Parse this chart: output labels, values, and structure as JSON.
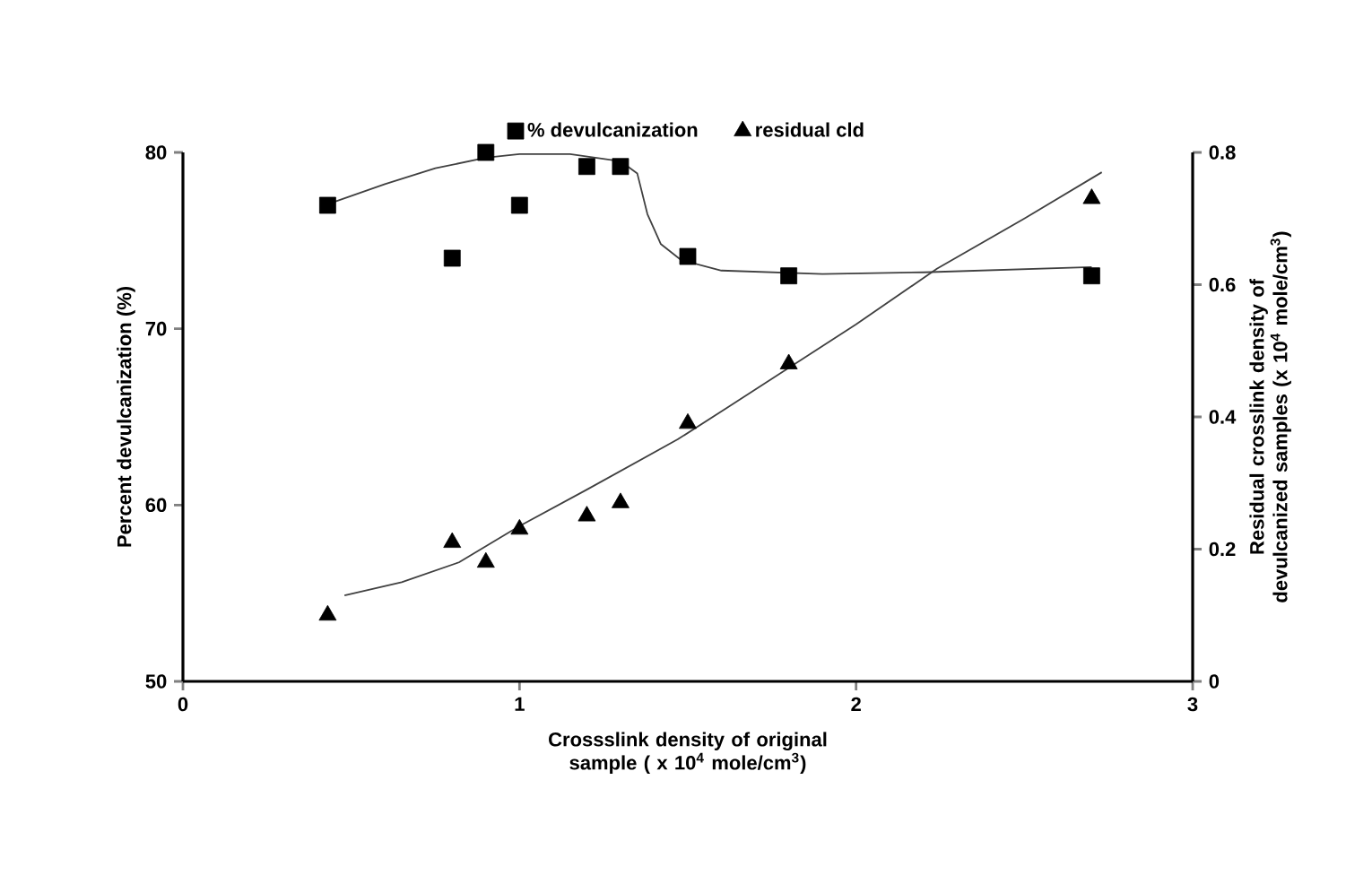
{
  "chart_data": {
    "type": "scatter",
    "xlabel": "Crossslink density of original sample ( x 10$^{4}$ mole/cm$^{3}$)",
    "ylabel": "Percent devulcanization (%)",
    "y2label": "Residual crosslink density of devulcanized samples (x 10$^{4}$ mole/cm$^{3}$)",
    "xlim": [
      0,
      3
    ],
    "xticks": [
      0,
      1,
      2,
      3
    ],
    "ylim": [
      50,
      80
    ],
    "yticks": [
      50,
      60,
      70,
      80
    ],
    "y2lim": [
      0,
      0.8
    ],
    "y2ticks": [
      0,
      0.2,
      0.4,
      0.6,
      0.8
    ],
    "legend": "top",
    "grid": false,
    "series": [
      {
        "name": "% devulcanization",
        "marker": "square",
        "color": "#000000",
        "x": [
          0.43,
          0.8,
          0.9,
          1.0,
          1.2,
          1.3,
          1.5,
          1.8,
          2.7
        ],
        "values": [
          77,
          74,
          80,
          77,
          79.2,
          79.2,
          74.1,
          73,
          73
        ]
      },
      {
        "name": "residual cld",
        "marker": "triangle",
        "color": "#000000",
        "axis": "y2",
        "x": [
          0.43,
          0.8,
          0.9,
          1.0,
          1.2,
          1.3,
          1.5,
          1.8,
          2.7
        ],
        "values": [
          0.1,
          0.21,
          0.18,
          0.23,
          0.25,
          0.27,
          0.39,
          0.48,
          0.73
        ]
      },
      {
        "type": "line",
        "marker": "none",
        "line_style": "solid",
        "color": "#404040",
        "x": [
          0.45,
          0.6,
          0.75,
          0.9,
          1.0,
          1.15,
          1.3,
          1.35,
          1.38,
          1.42,
          1.48,
          1.6,
          1.9,
          2.2,
          2.7
        ],
        "values": [
          77.2,
          78.2,
          79.1,
          79.7,
          79.9,
          79.9,
          79.5,
          78.8,
          76.5,
          74.8,
          73.9,
          73.3,
          73.1,
          73.2,
          73.5
        ]
      },
      {
        "type": "line",
        "marker": "none",
        "line_style": "solid",
        "color": "#404040",
        "axis": "y2",
        "x": [
          0.48,
          0.65,
          0.82,
          1.0,
          1.2,
          1.47,
          1.62,
          2.0,
          2.24,
          2.5,
          2.73
        ],
        "values": [
          0.13,
          0.15,
          0.18,
          0.235,
          0.29,
          0.366,
          0.415,
          0.54,
          0.624,
          0.7,
          0.77
        ]
      }
    ]
  }
}
